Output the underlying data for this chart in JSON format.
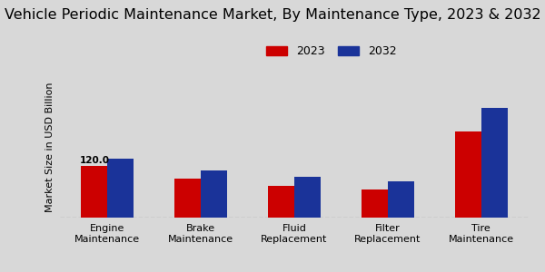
{
  "title": "Vehicle Periodic Maintenance Market, By Maintenance Type, 2023 & 2032",
  "ylabel": "Market Size in USD Billion",
  "categories": [
    "Engine\nMaintenance",
    "Brake\nMaintenance",
    "Fluid\nReplacement",
    "Filter\nReplacement",
    "Tire\nMaintenance"
  ],
  "values_2023": [
    120.0,
    90.0,
    75.0,
    65.0,
    200.0
  ],
  "values_2032": [
    138.0,
    110.0,
    95.0,
    85.0,
    255.0
  ],
  "color_2023": "#cc0000",
  "color_2032": "#1a3399",
  "annotation_text": "120.0",
  "annotation_category_idx": 0,
  "background_color": "#d8d8d8",
  "bar_width": 0.28,
  "title_fontsize": 11.5,
  "legend_labels": [
    "2023",
    "2032"
  ],
  "bottom_stripe_color": "#cc0000",
  "ylim_max": 330,
  "tick_fontsize": 8.0,
  "ylabel_fontsize": 8.0,
  "legend_fontsize": 9.0,
  "annot_fontsize": 7.5
}
